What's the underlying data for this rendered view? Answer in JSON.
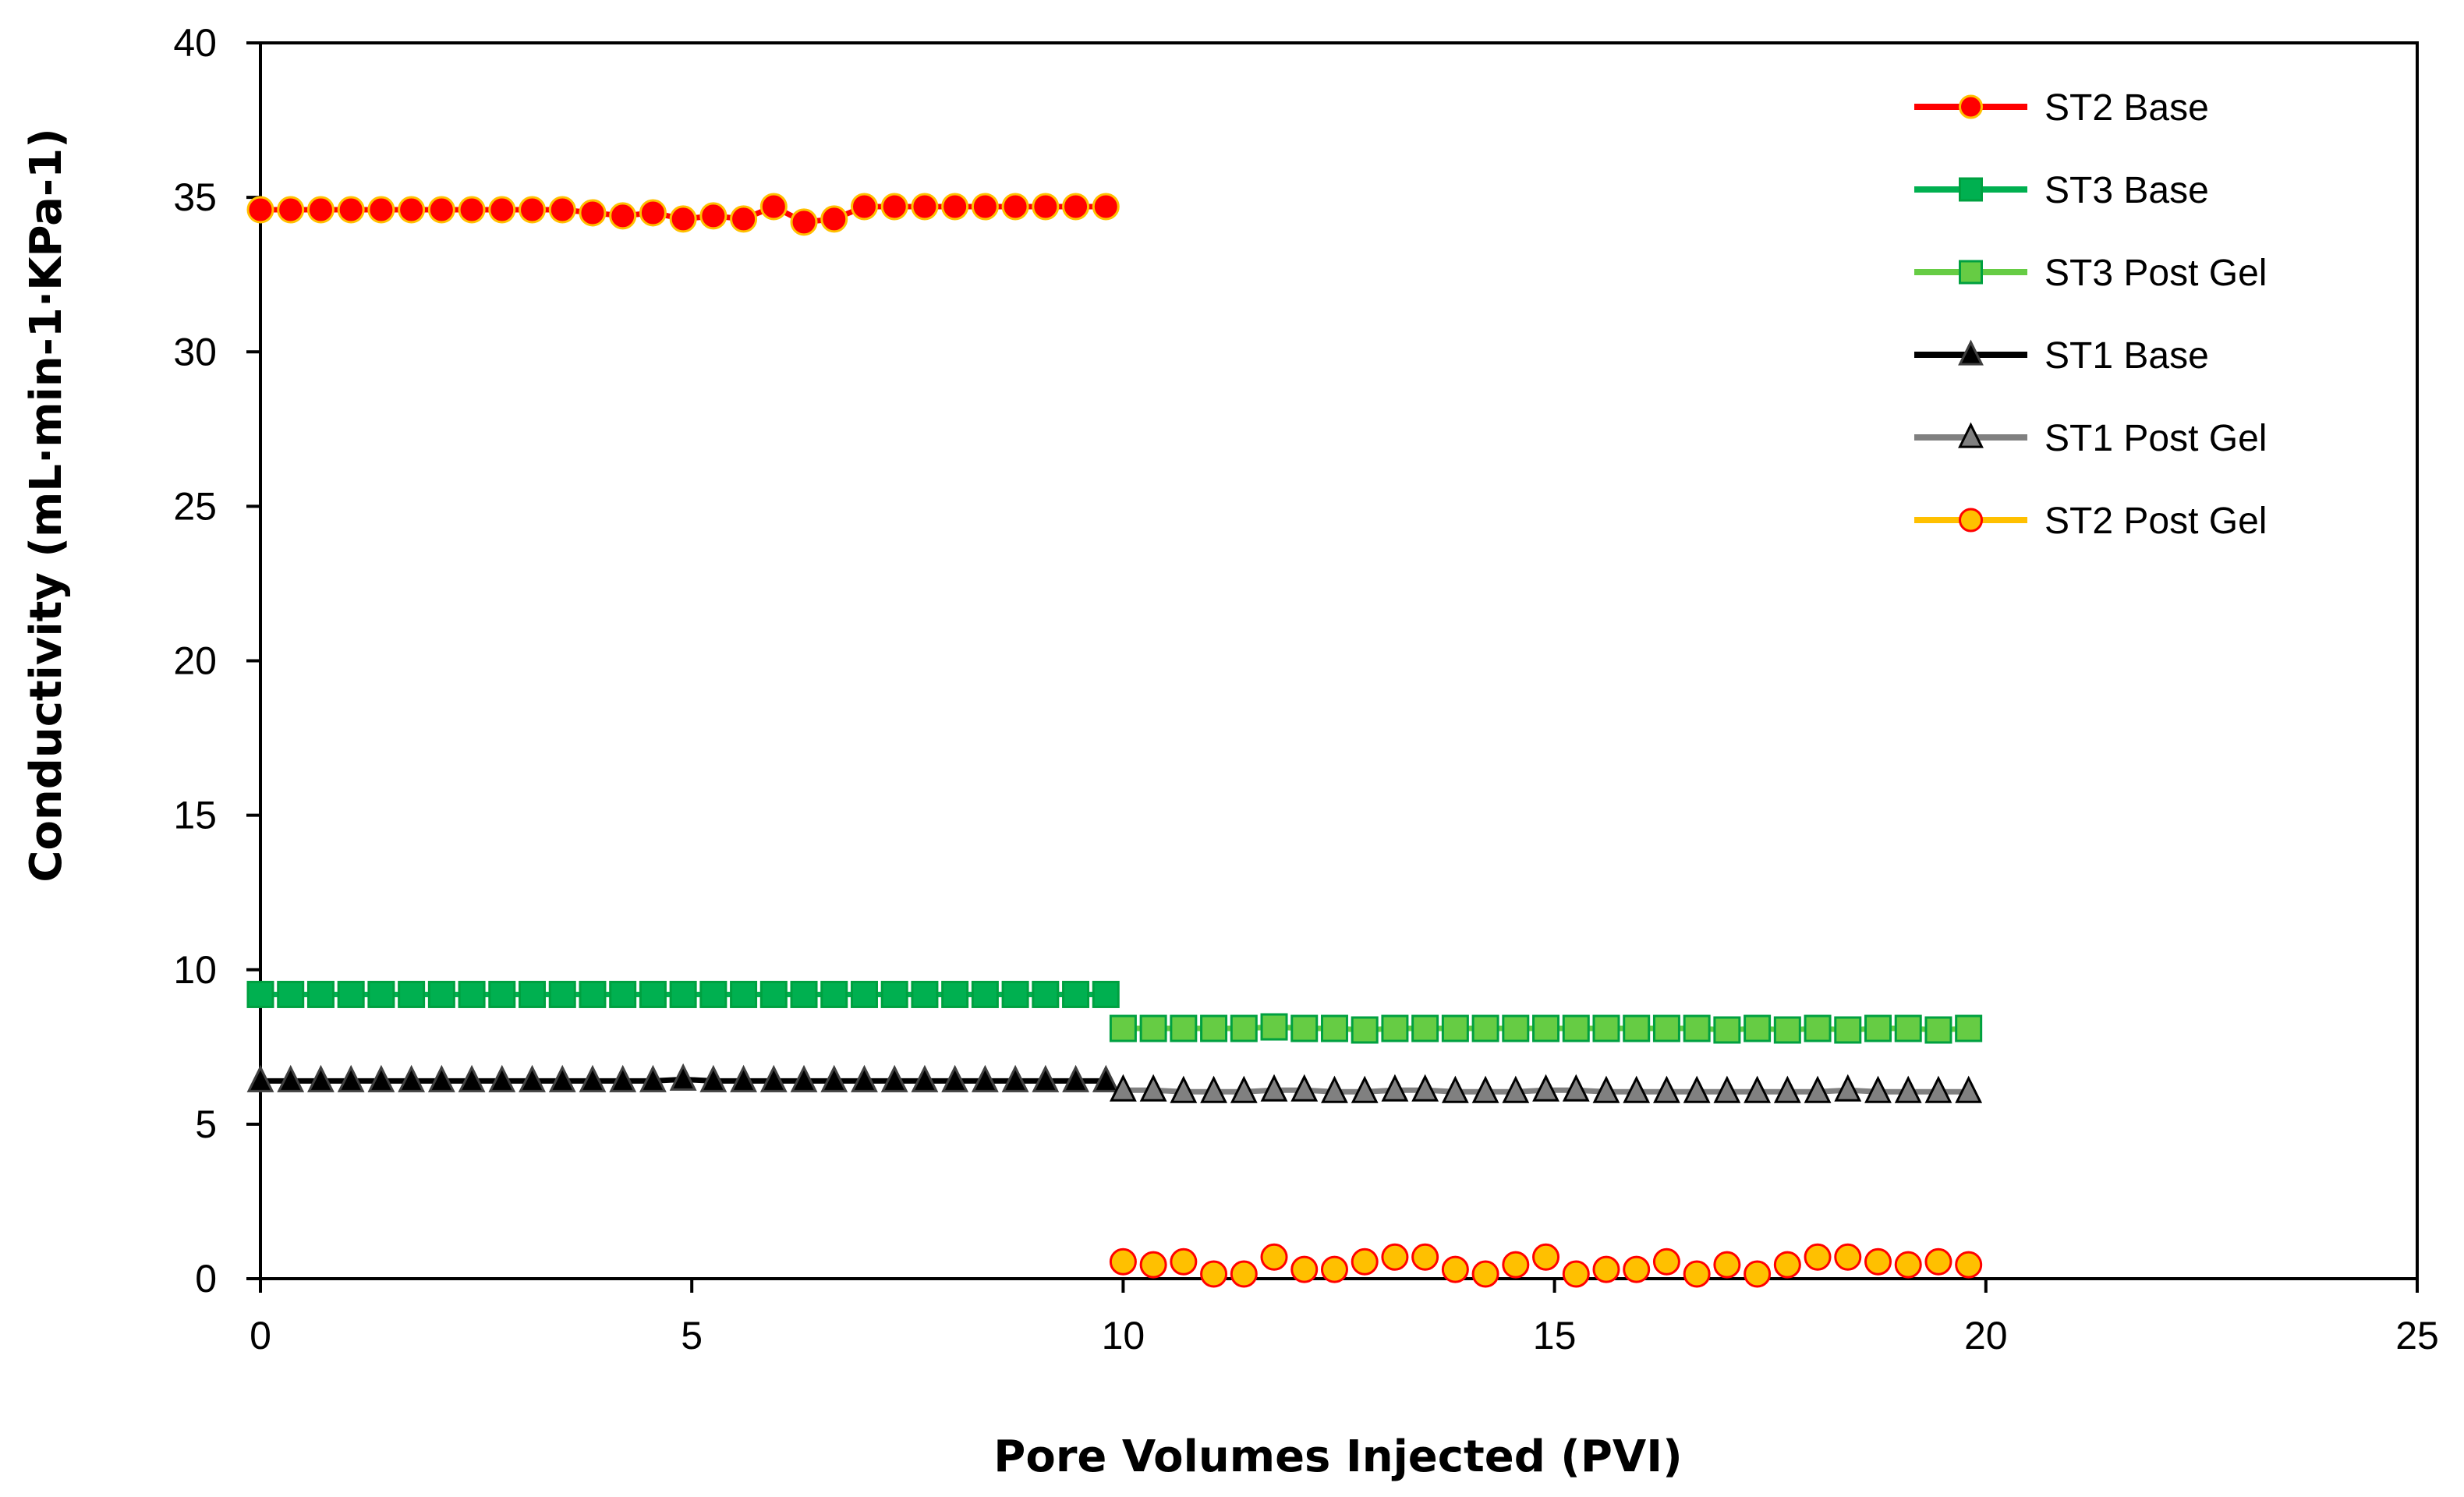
{
  "chart_data": {
    "type": "line",
    "title": "",
    "xlabel": "Pore Volumes Injected (PVI)",
    "ylabel": "Conductivity (mL·min-1·KPa-1)",
    "xlim": [
      0,
      25
    ],
    "ylim": [
      0,
      40
    ],
    "xticks": [
      0,
      5,
      10,
      15,
      20,
      25
    ],
    "yticks": [
      0,
      5,
      10,
      15,
      20,
      25,
      30,
      35,
      40
    ],
    "grid": false,
    "legend_position": "top-right",
    "series": [
      {
        "name": "ST2 Base",
        "line_color": "#FF0000",
        "marker": "circle",
        "marker_fill": "#FF0000",
        "marker_stroke": "#FFC000",
        "x": [
          0,
          0.35,
          0.7,
          1.05,
          1.4,
          1.75,
          2.1,
          2.45,
          2.8,
          3.15,
          3.5,
          3.85,
          4.2,
          4.55,
          4.9,
          5.25,
          5.6,
          5.95,
          6.3,
          6.65,
          7.0,
          7.35,
          7.7,
          8.05,
          8.4,
          8.75,
          9.1,
          9.45,
          9.8
        ],
        "y": [
          34.6,
          34.6,
          34.6,
          34.6,
          34.6,
          34.6,
          34.6,
          34.6,
          34.6,
          34.6,
          34.6,
          34.5,
          34.4,
          34.5,
          34.3,
          34.4,
          34.3,
          34.7,
          34.2,
          34.3,
          34.7,
          34.7,
          34.7,
          34.7,
          34.7,
          34.7,
          34.7,
          34.7,
          34.7
        ]
      },
      {
        "name": "ST3 Base",
        "line_color": "#00B050",
        "marker": "square",
        "marker_fill": "#00B050",
        "marker_stroke": "#00A040",
        "x": [
          0,
          0.35,
          0.7,
          1.05,
          1.4,
          1.75,
          2.1,
          2.45,
          2.8,
          3.15,
          3.5,
          3.85,
          4.2,
          4.55,
          4.9,
          5.25,
          5.6,
          5.95,
          6.3,
          6.65,
          7.0,
          7.35,
          7.7,
          8.05,
          8.4,
          8.75,
          9.1,
          9.45,
          9.8
        ],
        "y": [
          9.2,
          9.2,
          9.2,
          9.2,
          9.2,
          9.2,
          9.2,
          9.2,
          9.2,
          9.2,
          9.2,
          9.2,
          9.2,
          9.2,
          9.2,
          9.2,
          9.2,
          9.2,
          9.2,
          9.2,
          9.2,
          9.2,
          9.2,
          9.2,
          9.2,
          9.2,
          9.2,
          9.2,
          9.2
        ]
      },
      {
        "name": "ST3 Post Gel",
        "line_color": "#66CC44",
        "marker": "square",
        "marker_fill": "#66CC44",
        "marker_stroke": "#00A040",
        "x": [
          10,
          10.35,
          10.7,
          11.05,
          11.4,
          11.75,
          12.1,
          12.45,
          12.8,
          13.15,
          13.5,
          13.85,
          14.2,
          14.55,
          14.9,
          15.25,
          15.6,
          15.95,
          16.3,
          16.65,
          17.0,
          17.35,
          17.7,
          18.05,
          18.4,
          18.75,
          19.1,
          19.45,
          19.8
        ],
        "y": [
          8.1,
          8.1,
          8.1,
          8.1,
          8.1,
          8.15,
          8.1,
          8.1,
          8.05,
          8.1,
          8.1,
          8.1,
          8.1,
          8.1,
          8.1,
          8.1,
          8.1,
          8.1,
          8.1,
          8.1,
          8.05,
          8.1,
          8.05,
          8.1,
          8.05,
          8.1,
          8.1,
          8.05,
          8.1
        ]
      },
      {
        "name": "ST1 Base",
        "line_color": "#000000",
        "marker": "triangle",
        "marker_fill": "#000000",
        "marker_stroke": "#404040",
        "x": [
          0,
          0.35,
          0.7,
          1.05,
          1.4,
          1.75,
          2.1,
          2.45,
          2.8,
          3.15,
          3.5,
          3.85,
          4.2,
          4.55,
          4.9,
          5.25,
          5.6,
          5.95,
          6.3,
          6.65,
          7.0,
          7.35,
          7.7,
          8.05,
          8.4,
          8.75,
          9.1,
          9.45,
          9.8
        ],
        "y": [
          6.4,
          6.4,
          6.4,
          6.4,
          6.4,
          6.4,
          6.4,
          6.4,
          6.4,
          6.4,
          6.4,
          6.4,
          6.4,
          6.4,
          6.45,
          6.4,
          6.4,
          6.4,
          6.4,
          6.4,
          6.4,
          6.4,
          6.4,
          6.4,
          6.4,
          6.4,
          6.4,
          6.4,
          6.4
        ]
      },
      {
        "name": "ST1 Post Gel",
        "line_color": "#808080",
        "marker": "triangle",
        "marker_fill": "#808080",
        "marker_stroke": "#000000",
        "x": [
          10,
          10.35,
          10.7,
          11.05,
          11.4,
          11.75,
          12.1,
          12.45,
          12.8,
          13.15,
          13.5,
          13.85,
          14.2,
          14.55,
          14.9,
          15.25,
          15.6,
          15.95,
          16.3,
          16.65,
          17.0,
          17.35,
          17.7,
          18.05,
          18.4,
          18.75,
          19.1,
          19.45,
          19.8
        ],
        "y": [
          6.1,
          6.1,
          6.05,
          6.05,
          6.05,
          6.1,
          6.1,
          6.05,
          6.05,
          6.1,
          6.1,
          6.05,
          6.05,
          6.05,
          6.1,
          6.1,
          6.05,
          6.05,
          6.05,
          6.05,
          6.05,
          6.05,
          6.05,
          6.05,
          6.1,
          6.05,
          6.05,
          6.05,
          6.05
        ]
      },
      {
        "name": "ST2 Post Gel",
        "line_color": "#FFC000",
        "marker": "circle",
        "marker_fill": "#FFC000",
        "marker_stroke": "#FF0000",
        "line_visible": false,
        "x": [
          10,
          10.35,
          10.7,
          11.05,
          11.4,
          11.75,
          12.1,
          12.45,
          12.8,
          13.15,
          13.5,
          13.85,
          14.2,
          14.55,
          14.9,
          15.25,
          15.6,
          15.95,
          16.3,
          16.65,
          17.0,
          17.35,
          17.7,
          18.05,
          18.4,
          18.75,
          19.1,
          19.45,
          19.8
        ],
        "y": [
          0.55,
          0.45,
          0.55,
          0.15,
          0.15,
          0.7,
          0.3,
          0.3,
          0.55,
          0.7,
          0.7,
          0.3,
          0.15,
          0.45,
          0.7,
          0.15,
          0.3,
          0.3,
          0.55,
          0.15,
          0.45,
          0.15,
          0.45,
          0.7,
          0.7,
          0.55,
          0.45,
          0.55,
          0.45
        ]
      }
    ]
  }
}
